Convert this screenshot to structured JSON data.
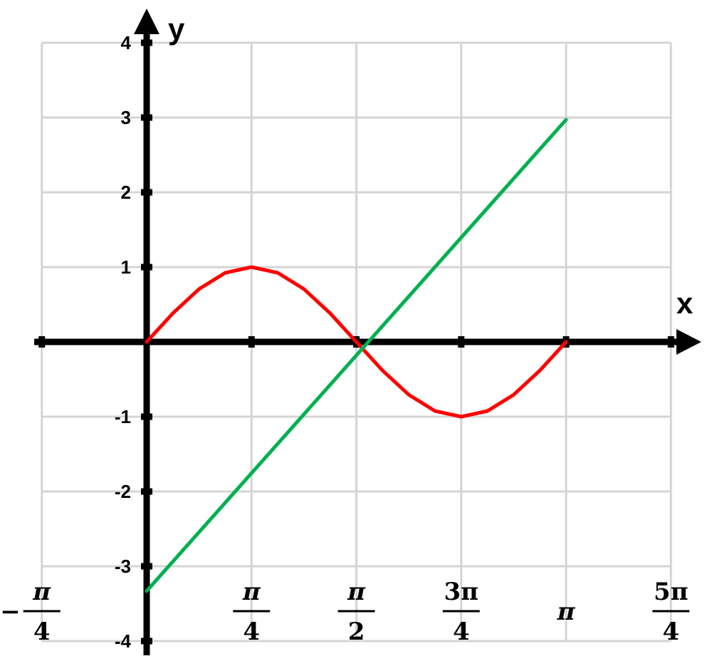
{
  "chart_data": {
    "type": "line",
    "xlabel": "x",
    "ylabel": "y",
    "xlim": [
      -0.7854,
      3.927
    ],
    "ylim": [
      -4,
      4
    ],
    "grid": true,
    "x_ticks": [
      {
        "value": -0.7854,
        "sign": "−",
        "num": "π",
        "den": "4"
      },
      {
        "value": 0.7854,
        "sign": "",
        "num": "π",
        "den": "4"
      },
      {
        "value": 1.5708,
        "sign": "",
        "num": "π",
        "den": "2"
      },
      {
        "value": 2.3562,
        "sign": "",
        "num": "3π",
        "den": "4"
      },
      {
        "value": 3.1416,
        "sign": "",
        "num": "π",
        "den": ""
      },
      {
        "value": 3.927,
        "sign": "",
        "num": "5π",
        "den": "4"
      }
    ],
    "y_ticks": [
      "4",
      "3",
      "2",
      "1",
      "-1",
      "-2",
      "-3",
      "-4"
    ],
    "series": [
      {
        "color": "#ff0000",
        "x": [
          0,
          0.1963,
          0.3927,
          0.589,
          0.7854,
          0.9817,
          1.1781,
          1.3744,
          1.5708,
          1.7671,
          1.9635,
          2.1598,
          2.3562,
          2.5525,
          2.7489,
          2.9452,
          3.1416
        ],
        "y": [
          0,
          0.383,
          0.707,
          0.924,
          1,
          0.924,
          0.707,
          0.383,
          0,
          -0.383,
          -0.707,
          -0.924,
          -1,
          -0.924,
          -0.707,
          -0.383,
          0
        ]
      },
      {
        "color": "#00b050",
        "x": [
          0,
          3.1416
        ],
        "y": [
          -3.33,
          2.97
        ]
      }
    ]
  }
}
